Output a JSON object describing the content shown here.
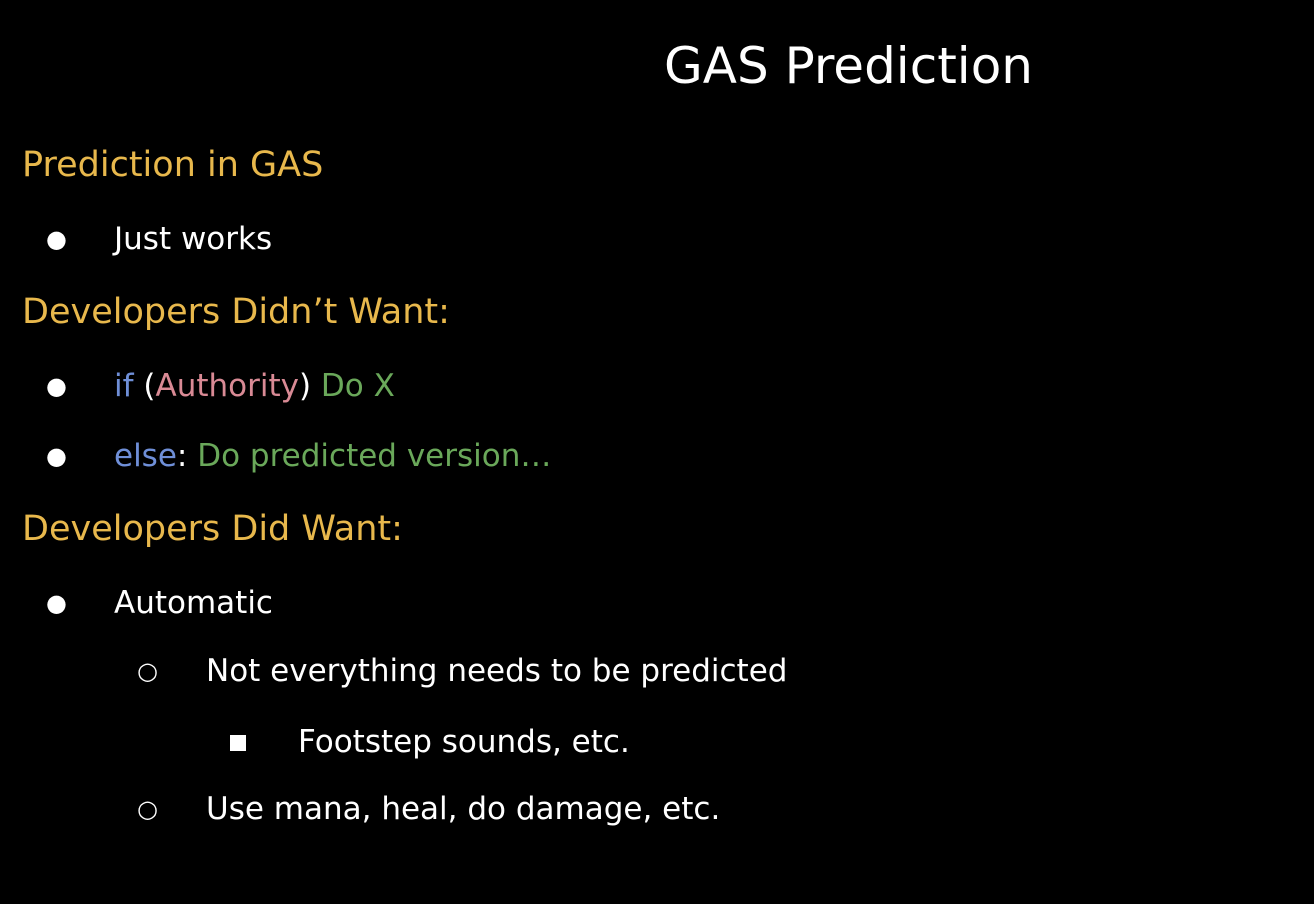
{
  "slide": {
    "title": "GAS Prediction",
    "colors": {
      "background": "#000000",
      "heading": "#e8b84c",
      "text": "#ffffff",
      "keyword": "#6f8fd8",
      "authority": "#d98a95",
      "action": "#6aa85a"
    },
    "sections": [
      {
        "heading": "Prediction in GAS",
        "items": [
          {
            "text": "Just works"
          }
        ]
      },
      {
        "heading": "Developers Didn’t Want:",
        "items": [
          {
            "code_if": "if",
            "paren_open": " (",
            "authority": "Authority",
            "paren_close": ") ",
            "action": "Do X"
          },
          {
            "code_else": "else",
            "colon": ": ",
            "action": "Do predicted version…"
          }
        ]
      },
      {
        "heading": "Developers Did Want:",
        "items": [
          {
            "text": "Automatic"
          },
          {
            "text": "Not everything needs to be predicted"
          },
          {
            "text": "Footstep sounds, etc."
          },
          {
            "text": "Use mana, heal, do damage, etc."
          }
        ]
      }
    ],
    "markers": {
      "level1": "●",
      "level2": "○",
      "level3": "square-bullet-icon"
    }
  }
}
